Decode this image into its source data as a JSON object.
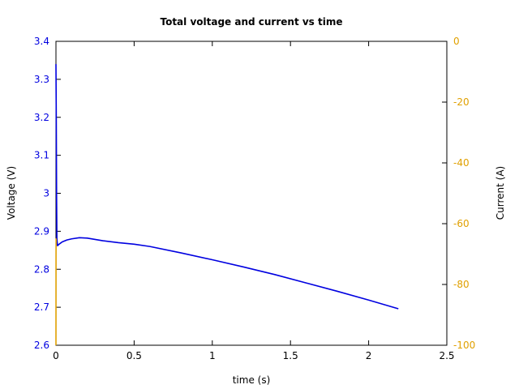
{
  "chart_data": {
    "type": "line",
    "title": "Total voltage and current vs time",
    "xlabel": "time (s)",
    "ylabel_left": "Voltage (V)",
    "ylabel_right": "Current (A)",
    "xlim": [
      0,
      2.5
    ],
    "ylim_left": [
      2.6,
      3.4
    ],
    "ylim_right": [
      -100,
      0
    ],
    "x_ticks": [
      "0",
      "0.5",
      "1",
      "1.5",
      "2",
      "2.5"
    ],
    "y_left_ticks": [
      "2.6",
      "2.7",
      "2.8",
      "2.9",
      "3",
      "3.1",
      "3.2",
      "3.3",
      "3.4"
    ],
    "y_right_ticks": [
      "-100",
      "-80",
      "-60",
      "-40",
      "-20",
      "0"
    ],
    "grid": false,
    "colors": {
      "voltage": "#0000e0",
      "current": "#e0a000",
      "left_axis_text": "#0000e0",
      "right_axis_text": "#e0a000"
    },
    "series": [
      {
        "axis": "left",
        "x": [
          0.0,
          0.002,
          0.004,
          0.006,
          0.01,
          0.02,
          0.04,
          0.07,
          0.1,
          0.15,
          0.2,
          0.3,
          0.4,
          0.5,
          0.6,
          0.8,
          1.0,
          1.2,
          1.4,
          1.6,
          1.8,
          2.0,
          2.19
        ],
        "y": [
          3.34,
          3.2,
          3.0,
          2.88,
          2.862,
          2.866,
          2.872,
          2.877,
          2.88,
          2.883,
          2.882,
          2.875,
          2.87,
          2.866,
          2.86,
          2.843,
          2.825,
          2.806,
          2.786,
          2.764,
          2.742,
          2.719,
          2.696
        ]
      },
      {
        "axis": "right",
        "x": [
          0.0,
          0.0005,
          0.001,
          0.0015
        ],
        "y": [
          -100,
          -70,
          -65,
          -66
        ]
      }
    ]
  }
}
